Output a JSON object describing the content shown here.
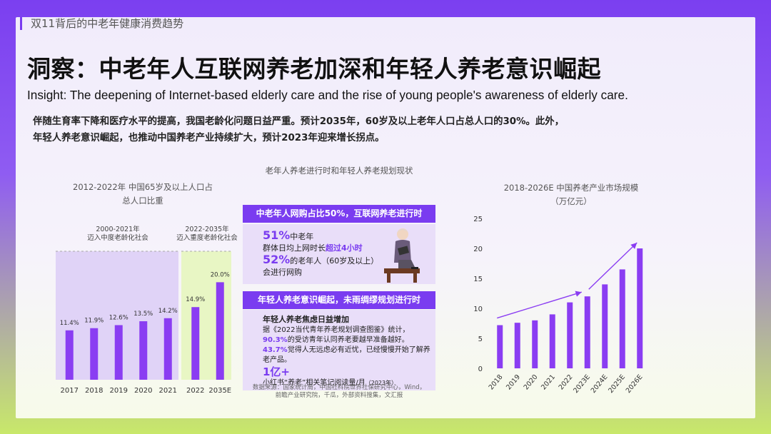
{
  "header": {
    "section": "双11背后的中老年健康消费趋势",
    "title": "洞察：中老年人互联网养老加深和年轻人养老意识崛起",
    "subtitle": "Insight: The deepening of Internet-based elderly care and the rise of young people's awareness of elderly care.",
    "intro_line1": "伴随生育率下降和医疗水平的提高，我国老龄化问题日益严重。预计2035年，60岁及以上老年人口占总人口的30%。此外，",
    "intro_line2": "年轻人养老意识崛起，也推动中国养老产业持续扩大，预计2023年迎来增长拐点。"
  },
  "left_chart": {
    "title_line1": "2012-2022年 中国65岁及以上人口占",
    "title_line2": "总人口比重",
    "phase1_line1": "2000-2021年",
    "phase1_line2": "迈入中度老龄化社会",
    "phase2_line1": "2022-2035年",
    "phase2_line2": "迈入重度老龄化社会",
    "colors": {
      "bar": "#8a3df2",
      "phase1_bg": "#e0d3f7",
      "phase2_bg": "#e8f6c4"
    }
  },
  "middle": {
    "title": "老年人养老进行时和年轻人养老规划现状",
    "banner1": "中老年人网购占比50%，互联网养老进行时",
    "stat1_value": "51%",
    "stat1_text": "中老年",
    "stat1_line2_a": "群体日均上网时长",
    "stat1_line2_b": "超过4小时",
    "stat2_value": "52%",
    "stat2_text": "的老年人（60岁及以上）",
    "stat2_line2": "会进行网购",
    "banner2": "年轻人养老意识崛起，未雨绸缪规划进行时",
    "heading2": "年轻人养老焦虑日益增加",
    "p1": "据《2022当代青年养老规划调查图鉴》统计，",
    "p2_value": "90.3%",
    "p2_text": "的受访青年认同养老要越早准备越好。",
    "p3_value": "43.7%",
    "p3_text": "觉得人无远虑必有近忧，已经慢慢开始了解养",
    "p3_line2": "老产品。",
    "big_value": "1亿+",
    "big_text": "小红书“养老”相关笔记阅读量/月",
    "big_note": "（2023年）",
    "source_line1": "数据来源：国家统计局，中国社科院世界社保研究中心，Wind，",
    "source_line2": "前瞻产业研究院，千瓜，外部资料搜集，文汇报"
  },
  "right_chart": {
    "title_line1": "2018-2026E 中国养老产业市场规模",
    "title_line2": "（万亿元）",
    "color": "#8a3df2"
  },
  "chart_data": [
    {
      "type": "bar",
      "title": "2012-2022年 中国65岁及以上人口占总人口比重",
      "categories": [
        "2017",
        "2018",
        "2019",
        "2020",
        "2021",
        "2022",
        "2035E"
      ],
      "values": [
        11.4,
        11.9,
        12.6,
        13.5,
        14.2,
        14.9,
        20.0
      ],
      "labels": [
        "11.4%",
        "11.9%",
        "12.6%",
        "13.5%",
        "14.2%",
        "14.9%",
        "20.0%"
      ],
      "ylim": [
        0,
        22
      ]
    },
    {
      "type": "bar",
      "title": "2018-2026E 中国养老产业市场规模（万亿元）",
      "categories": [
        "2018",
        "2019",
        "2020",
        "2021",
        "2022",
        "2023E",
        "2024E",
        "2025E",
        "2026E"
      ],
      "values": [
        7.2,
        7.6,
        8.0,
        9.0,
        11.0,
        12.0,
        14.0,
        16.5,
        20.0
      ],
      "yticks": [
        "0",
        "5",
        "10",
        "15",
        "20",
        "25"
      ],
      "ylim": [
        0,
        25
      ],
      "grid": false
    }
  ]
}
